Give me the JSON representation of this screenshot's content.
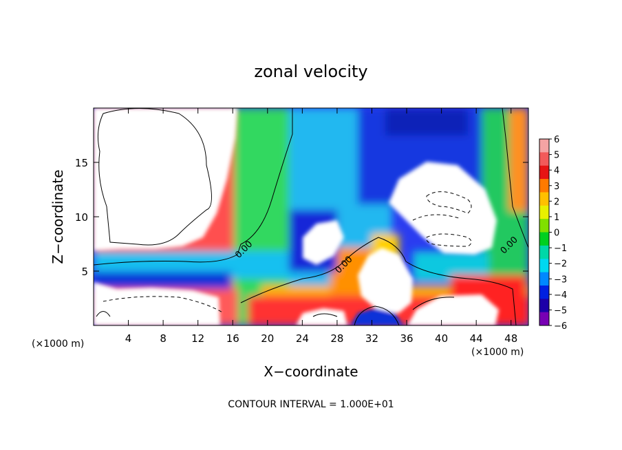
{
  "chart_data": {
    "type": "heatmap",
    "title": "zonal velocity",
    "xlabel": "X−coordinate",
    "ylabel": "Z−coordinate",
    "x_unit_left": "(×1000 m)",
    "x_unit_right": "(×1000 m)",
    "xlim": [
      0,
      50
    ],
    "ylim": [
      0,
      20
    ],
    "x_ticks": [
      4,
      8,
      12,
      16,
      20,
      24,
      28,
      32,
      36,
      40,
      44,
      48
    ],
    "y_ticks": [
      5,
      10,
      15
    ],
    "colorbar": {
      "levels": [
        6,
        5,
        4,
        3,
        2,
        1,
        0,
        -1,
        -2,
        -3,
        -4,
        -5,
        -6
      ],
      "labels": [
        "6",
        "5",
        "4",
        "3",
        "2",
        "1",
        "0",
        "−1",
        "−2",
        "−3",
        "−4",
        "−5",
        "−6"
      ],
      "colors": [
        "#f4a3a3",
        "#f25a5a",
        "#e61414",
        "#ff7a00",
        "#ffc000",
        "#e8f000",
        "#80e000",
        "#00d020",
        "#00d8a8",
        "#00d8f0",
        "#0088ff",
        "#0020e0",
        "#1c00a8",
        "#7800b4"
      ]
    },
    "contour_labels": [
      {
        "text": "0.00",
        "x": 17.5,
        "z": 6.8
      },
      {
        "text": "0.00",
        "x": 29.0,
        "z": 5.4
      },
      {
        "text": "0.00",
        "x": 48.0,
        "z": 7.2
      }
    ],
    "footnote": "CONTOUR INTERVAL = 1.000E+01"
  }
}
